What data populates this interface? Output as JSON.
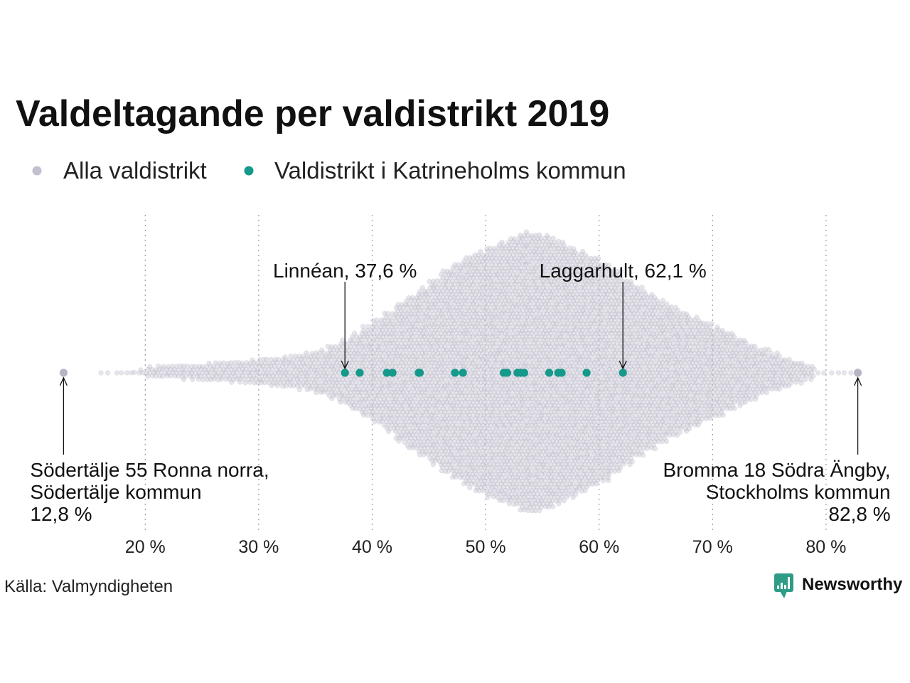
{
  "source": "Källa: Valmyndigheten",
  "logo": {
    "text": "Newsworthy",
    "color": "#2e9c87",
    "icon": "newsworthy-bar-chart-icon"
  },
  "chart_data": {
    "type": "scatter",
    "subtype": "beeswarm",
    "title": "Valdeltagande per valdistrikt 2019",
    "xlim": [
      7.2,
      87.4
    ],
    "x_ticks": [
      20,
      30,
      40,
      50,
      60,
      70,
      80
    ],
    "x_tick_labels": [
      "20 %",
      "30 %",
      "40 %",
      "50 %",
      "60 %",
      "70 %",
      "80 %"
    ],
    "grid": {
      "x": true,
      "y": false,
      "style": "dotted"
    },
    "legend_position": "top-left",
    "series": [
      {
        "name": "Alla valdistrikt",
        "color": "#c3c1cf",
        "highlight_color": "#b7b5c5",
        "highlighted_values": [
          12.8,
          82.8
        ],
        "individual_values": [
          16.1,
          16.7,
          17.5,
          17.9,
          18.4,
          18.8,
          79.3,
          79.8,
          80.5,
          81.1,
          81.6,
          82.2
        ],
        "distribution": {
          "bin_width": 1,
          "bins": [
            {
              "from": 19,
              "count": 4
            },
            {
              "from": 20,
              "count": 10
            },
            {
              "from": 21,
              "count": 11
            },
            {
              "from": 22,
              "count": 12
            },
            {
              "from": 23,
              "count": 13
            },
            {
              "from": 24,
              "count": 14
            },
            {
              "from": 25,
              "count": 16
            },
            {
              "from": 26,
              "count": 18
            },
            {
              "from": 27,
              "count": 19
            },
            {
              "from": 28,
              "count": 20
            },
            {
              "from": 29,
              "count": 22
            },
            {
              "from": 30,
              "count": 24
            },
            {
              "from": 31,
              "count": 26
            },
            {
              "from": 32,
              "count": 29
            },
            {
              "from": 33,
              "count": 31
            },
            {
              "from": 34,
              "count": 35
            },
            {
              "from": 35,
              "count": 40
            },
            {
              "from": 36,
              "count": 49
            },
            {
              "from": 37,
              "count": 58
            },
            {
              "from": 38,
              "count": 70
            },
            {
              "from": 39,
              "count": 83
            },
            {
              "from": 40,
              "count": 96
            },
            {
              "from": 41,
              "count": 109
            },
            {
              "from": 42,
              "count": 128
            },
            {
              "from": 43,
              "count": 141
            },
            {
              "from": 44,
              "count": 154
            },
            {
              "from": 45,
              "count": 169
            },
            {
              "from": 46,
              "count": 186
            },
            {
              "from": 47,
              "count": 198
            },
            {
              "from": 48,
              "count": 211
            },
            {
              "from": 49,
              "count": 220
            },
            {
              "from": 50,
              "count": 230
            },
            {
              "from": 51,
              "count": 238
            },
            {
              "from": 52,
              "count": 246
            },
            {
              "from": 53,
              "count": 256
            },
            {
              "from": 54,
              "count": 255
            },
            {
              "from": 55,
              "count": 250
            },
            {
              "from": 56,
              "count": 241
            },
            {
              "from": 57,
              "count": 230
            },
            {
              "from": 58,
              "count": 220
            },
            {
              "from": 59,
              "count": 210
            },
            {
              "from": 60,
              "count": 200
            },
            {
              "from": 61,
              "count": 186
            },
            {
              "from": 62,
              "count": 170
            },
            {
              "from": 63,
              "count": 156
            },
            {
              "from": 64,
              "count": 143
            },
            {
              "from": 65,
              "count": 131
            },
            {
              "from": 66,
              "count": 120
            },
            {
              "from": 67,
              "count": 110
            },
            {
              "from": 68,
              "count": 100
            },
            {
              "from": 69,
              "count": 90
            },
            {
              "from": 70,
              "count": 82
            },
            {
              "from": 71,
              "count": 72
            },
            {
              "from": 72,
              "count": 61
            },
            {
              "from": 73,
              "count": 51
            },
            {
              "from": 74,
              "count": 42
            },
            {
              "from": 75,
              "count": 35
            },
            {
              "from": 76,
              "count": 27
            },
            {
              "from": 77,
              "count": 20
            },
            {
              "from": 78,
              "count": 14
            }
          ]
        }
      },
      {
        "name": "Valdistrikt i Katrineholms kommun",
        "color": "#14998a",
        "values": [
          37.6,
          38.9,
          41.3,
          41.8,
          44.1,
          44.2,
          47.3,
          48.0,
          51.6,
          51.9,
          52.8,
          53.1,
          53.4,
          55.6,
          56.4,
          56.7,
          58.9,
          62.1
        ]
      }
    ],
    "annotations": [
      {
        "value": 37.6,
        "placement": "above",
        "lines": [
          "Linnéan, 37,6 %"
        ]
      },
      {
        "value": 62.1,
        "placement": "above",
        "lines": [
          "Laggarhult, 62,1 %"
        ]
      },
      {
        "value": 12.8,
        "placement": "below-left",
        "lines": [
          "Södertälje 55 Ronna norra,",
          "Södertälje kommun",
          "12,8 %"
        ]
      },
      {
        "value": 82.8,
        "placement": "below-right",
        "lines": [
          "Bromma 18 Södra Ängby,",
          "Stockholms kommun",
          "82,8 %"
        ]
      }
    ]
  }
}
